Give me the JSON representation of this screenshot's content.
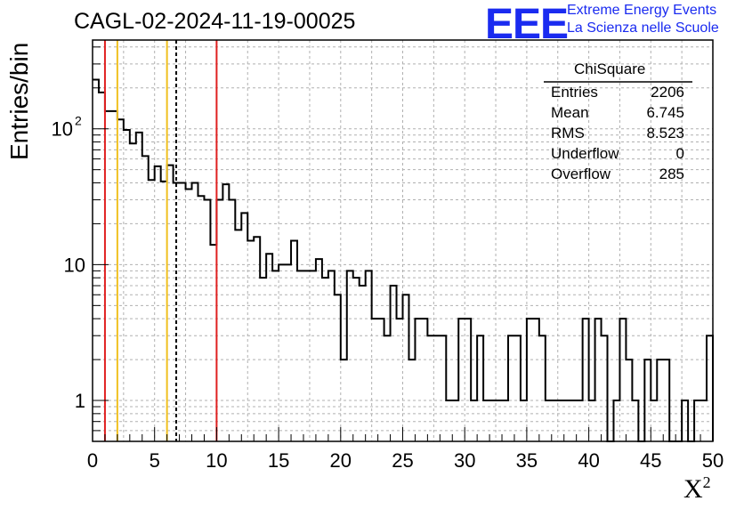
{
  "title": "CAGL-02-2024-11-19-00025",
  "logo": {
    "mark": "EEE",
    "line1": "Extreme Energy Events",
    "line2": "La Scienza nelle Scuole",
    "color": "#1a2bf0"
  },
  "stats": {
    "title": "ChiSquare",
    "rows": [
      {
        "key": "Entries",
        "value": "2206"
      },
      {
        "key": "Mean",
        "value": "6.745"
      },
      {
        "key": "RMS",
        "value": "8.523"
      },
      {
        "key": "Underflow",
        "value": "0"
      },
      {
        "key": "Overflow",
        "value": "285"
      }
    ]
  },
  "chart_data": {
    "type": "histogram",
    "title": "CAGL-02-2024-11-19-00025",
    "xlabel": "X",
    "xlabel_sup": "2",
    "ylabel": "Entries/bin",
    "xlim": [
      0,
      50
    ],
    "ylim": [
      0.5,
      450
    ],
    "yscale": "log",
    "grid": true,
    "bin_width": 0.5,
    "x_ticks": [
      "0",
      "5",
      "10",
      "15",
      "20",
      "25",
      "30",
      "35",
      "40",
      "45",
      "50"
    ],
    "y_ticks": [
      {
        "value": 1,
        "label": "1"
      },
      {
        "value": 10,
        "label": "10"
      },
      {
        "value": 100,
        "label": "10",
        "sup": "2"
      }
    ],
    "values": [
      230,
      185,
      135,
      135,
      117,
      98,
      78,
      94,
      63,
      42,
      53,
      41,
      54,
      40,
      40,
      36,
      40,
      32,
      30,
      14,
      30,
      39,
      30,
      18,
      24,
      15,
      16,
      8,
      12,
      9,
      10,
      10,
      15,
      9,
      9,
      9,
      11,
      8,
      9,
      6,
      2,
      9,
      8,
      7,
      9,
      4,
      4,
      3,
      7,
      4,
      6,
      2,
      4,
      4,
      3,
      3,
      3,
      1,
      1,
      4,
      4,
      1,
      3,
      1,
      1,
      1,
      1,
      3,
      3,
      1,
      4,
      4,
      3,
      1,
      1,
      1,
      1,
      1,
      1,
      4,
      1,
      4,
      3,
      0,
      1,
      4,
      2,
      1,
      0,
      2,
      1,
      2,
      2,
      0.5,
      0.5,
      1,
      0.5,
      1,
      1,
      3
    ],
    "vertical_lines": [
      {
        "x": 1,
        "color": "#e02020",
        "style": "solid"
      },
      {
        "x": 2,
        "color": "#f0c020",
        "style": "solid"
      },
      {
        "x": 6,
        "color": "#f0c020",
        "style": "solid"
      },
      {
        "x": 6.745,
        "color": "#000000",
        "style": "dashed"
      },
      {
        "x": 10,
        "color": "#e02020",
        "style": "solid"
      }
    ]
  }
}
